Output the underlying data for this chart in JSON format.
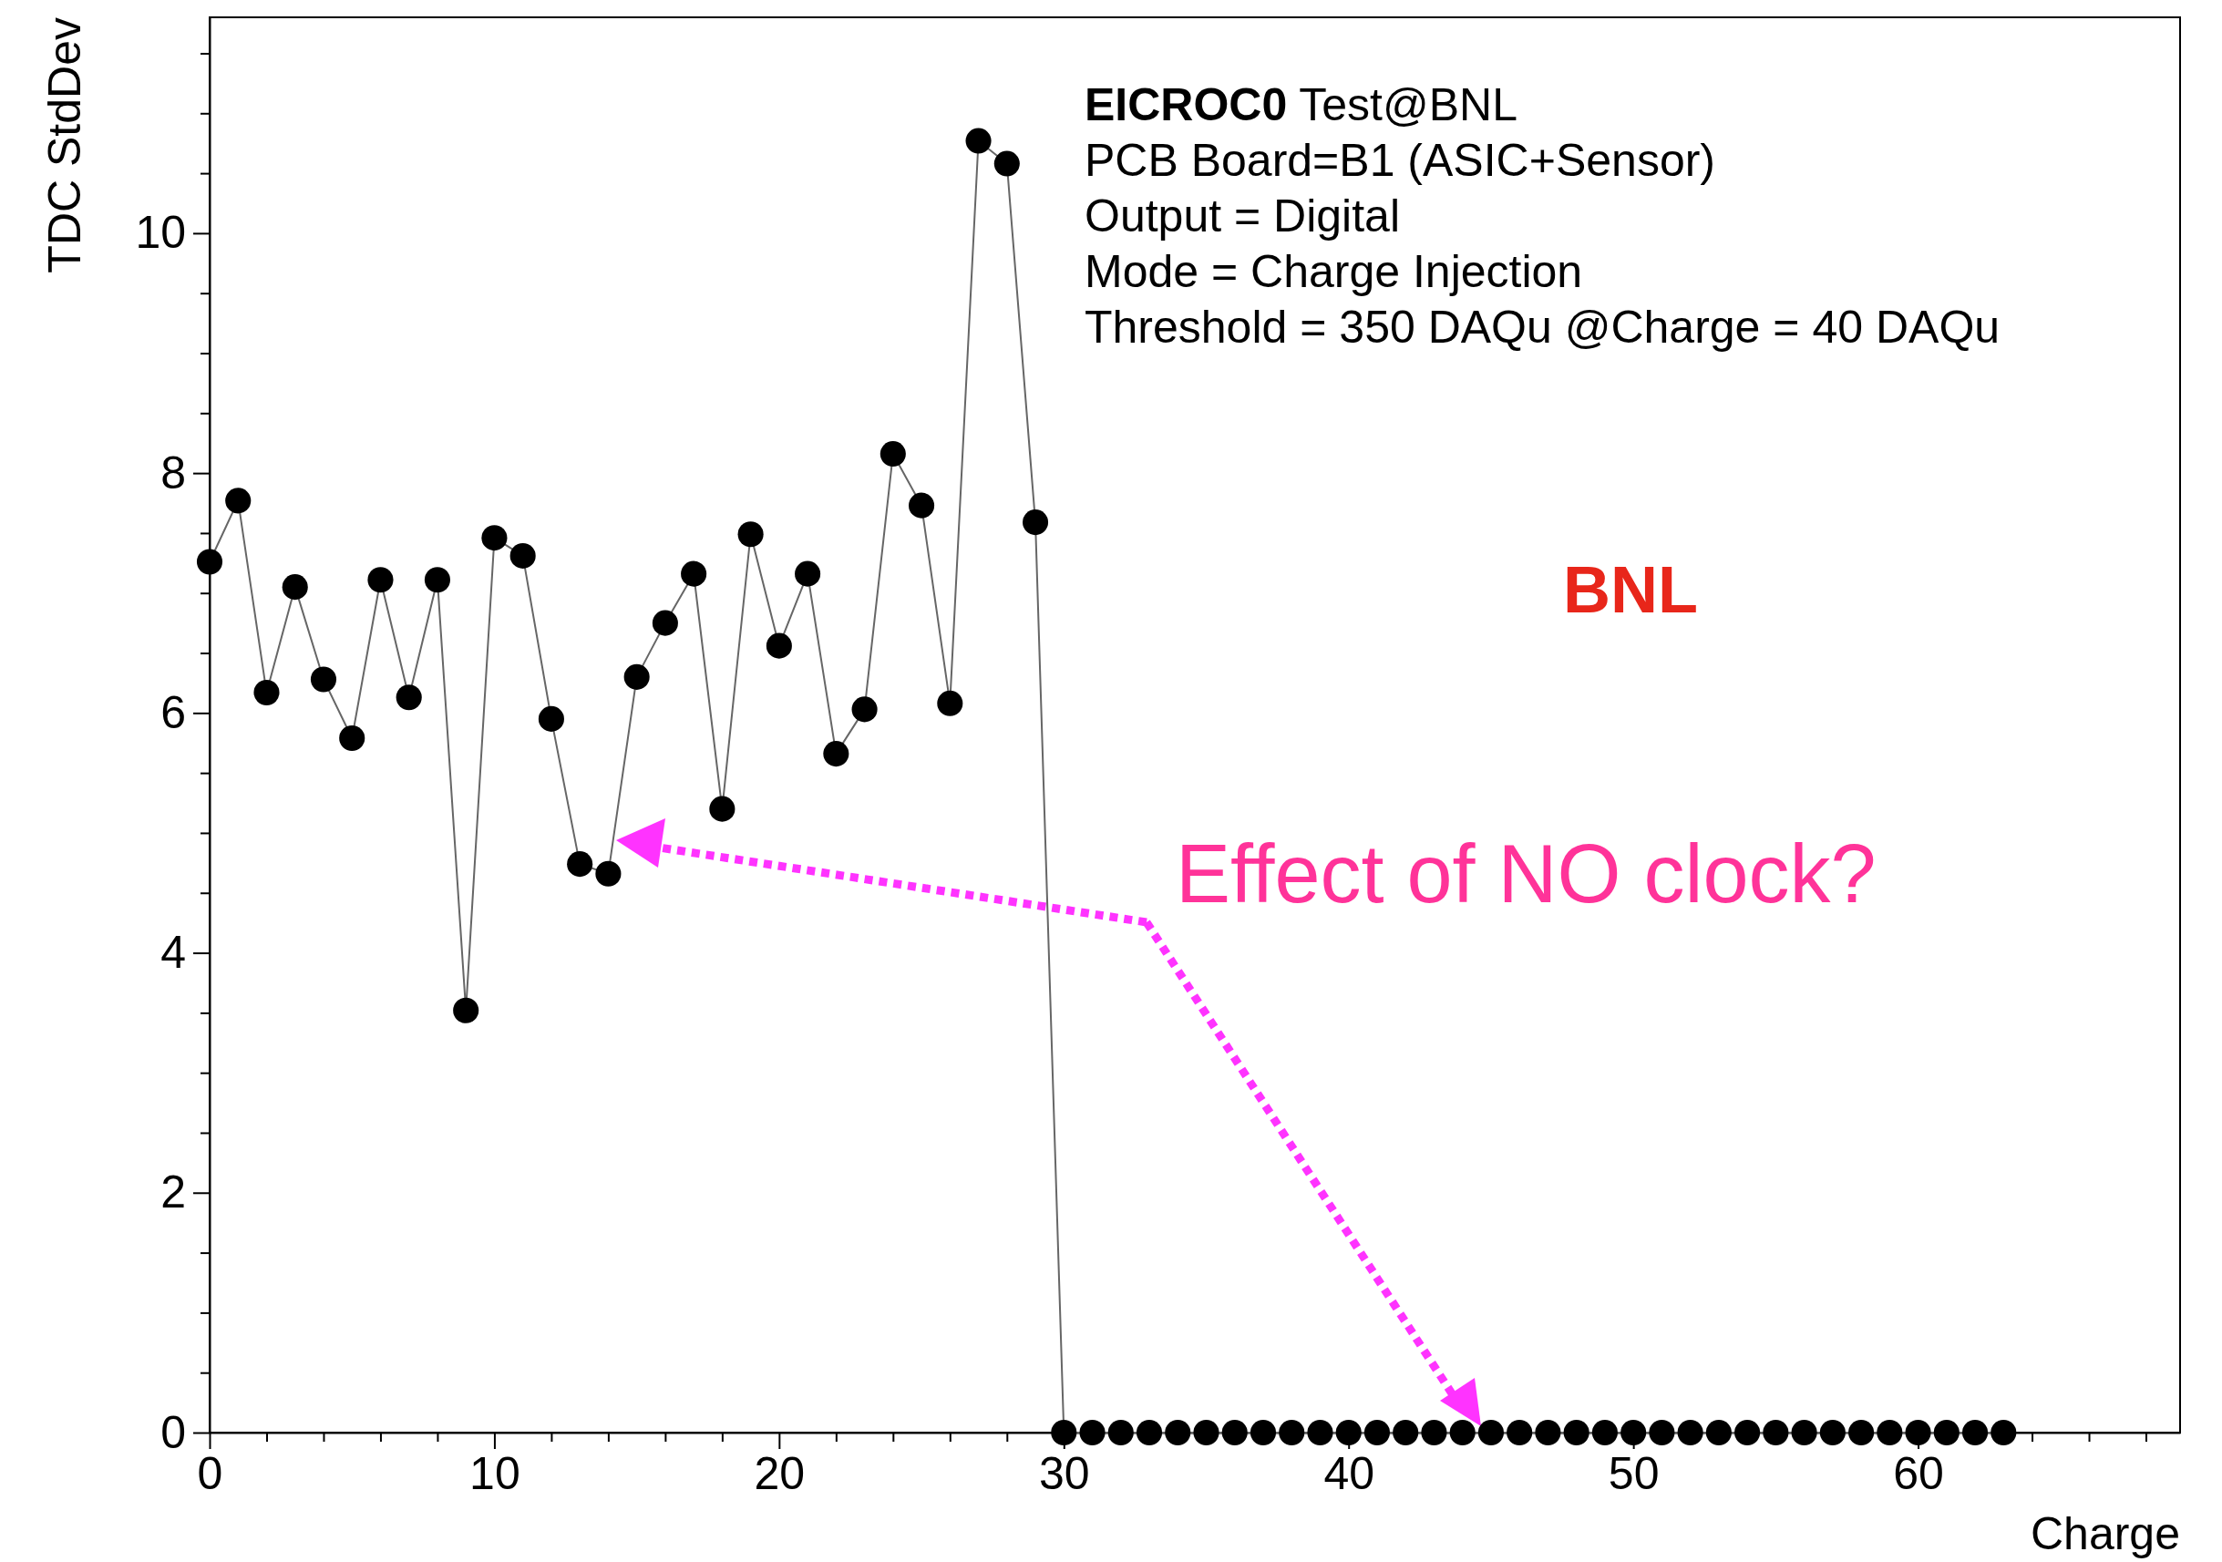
{
  "chart_data": {
    "type": "line",
    "xlabel": "Charge",
    "ylabel": "TDC StdDev",
    "x": [
      0,
      1,
      2,
      3,
      4,
      5,
      6,
      7,
      8,
      9,
      10,
      11,
      12,
      13,
      14,
      15,
      16,
      17,
      18,
      19,
      20,
      21,
      22,
      23,
      24,
      25,
      26,
      27,
      28,
      29,
      30,
      31,
      32,
      33,
      34,
      35,
      36,
      37,
      38,
      39,
      40,
      41,
      42,
      43,
      44,
      45,
      46,
      47,
      48,
      49,
      50,
      51,
      52,
      53,
      54,
      55,
      56,
      57,
      58,
      59,
      60,
      61,
      62,
      63
    ],
    "series": [
      {
        "color": "#000000",
        "values": [
          7.26,
          7.77,
          6.17,
          7.05,
          6.28,
          5.79,
          7.11,
          6.13,
          7.11,
          3.52,
          7.46,
          7.31,
          5.95,
          4.74,
          4.66,
          6.3,
          6.75,
          7.16,
          5.2,
          7.49,
          6.56,
          7.16,
          5.66,
          6.03,
          8.16,
          7.73,
          6.08,
          10.77,
          10.58,
          7.59,
          0,
          0,
          0,
          0,
          0,
          0,
          0,
          0,
          0,
          0,
          0,
          0,
          0,
          0,
          0,
          0,
          0,
          0,
          0,
          0,
          0,
          0,
          0,
          0,
          0,
          0,
          0,
          0,
          0,
          0,
          0,
          0,
          0,
          0
        ]
      }
    ],
    "xlim": [
      0,
      69.2
    ],
    "ylim": [
      0,
      11.8
    ],
    "xticks": [
      0,
      {
        "value": 2,
        "label": null
      },
      {
        "value": 4,
        "label": null
      },
      {
        "value": 6,
        "label": null
      },
      {
        "value": 8,
        "label": null
      },
      10,
      {
        "value": 12,
        "label": null
      },
      {
        "value": 14,
        "label": null
      },
      {
        "value": 16,
        "label": null
      },
      {
        "value": 18,
        "label": null
      },
      20,
      {
        "value": 22,
        "label": null
      },
      {
        "value": 24,
        "label": null
      },
      {
        "value": 26,
        "label": null
      },
      {
        "value": 28,
        "label": null
      },
      30,
      {
        "value": 32,
        "label": null
      },
      {
        "value": 34,
        "label": null
      },
      {
        "value": 36,
        "label": null
      },
      {
        "value": 38,
        "label": null
      },
      40,
      {
        "value": 42,
        "label": null
      },
      {
        "value": 44,
        "label": null
      },
      {
        "value": 46,
        "label": null
      },
      {
        "value": 48,
        "label": null
      },
      50,
      {
        "value": 52,
        "label": null
      },
      {
        "value": 54,
        "label": null
      },
      {
        "value": 56,
        "label": null
      },
      {
        "value": 58,
        "label": null
      },
      60,
      {
        "value": 62,
        "label": null
      },
      {
        "value": 64,
        "label": null
      },
      {
        "value": 66,
        "label": null
      },
      {
        "value": 68,
        "label": null
      }
    ],
    "yticks": [
      0,
      {
        "value": 0.5,
        "label": null
      },
      {
        "value": 1,
        "label": null
      },
      {
        "value": 1.5,
        "label": null
      },
      2,
      {
        "value": 2.5,
        "label": null
      },
      {
        "value": 3,
        "label": null
      },
      {
        "value": 3.5,
        "label": null
      },
      4,
      {
        "value": 4.5,
        "label": null
      },
      {
        "value": 5,
        "label": null
      },
      {
        "value": 5.5,
        "label": null
      },
      6,
      {
        "value": 6.5,
        "label": null
      },
      {
        "value": 7,
        "label": null
      },
      {
        "value": 7.5,
        "label": null
      },
      8,
      {
        "value": 8.5,
        "label": null
      },
      {
        "value": 9,
        "label": null
      },
      {
        "value": 9.5,
        "label": null
      },
      10,
      {
        "value": 10.5,
        "label": null
      },
      {
        "value": 11,
        "label": null
      },
      {
        "value": 11.5,
        "label": null
      }
    ],
    "marker": "circle",
    "line_style": "solid",
    "grid": false,
    "annotations": [
      "EICROC0 Test@BNL",
      "PCB Board=B1 (ASIC+Sensor)",
      "Output = Digital",
      "Mode = Charge Injection",
      "Threshold = 350 DAQu @Charge = 40 DAQu",
      "BNL",
      "Effect of NO clock?"
    ]
  }
}
